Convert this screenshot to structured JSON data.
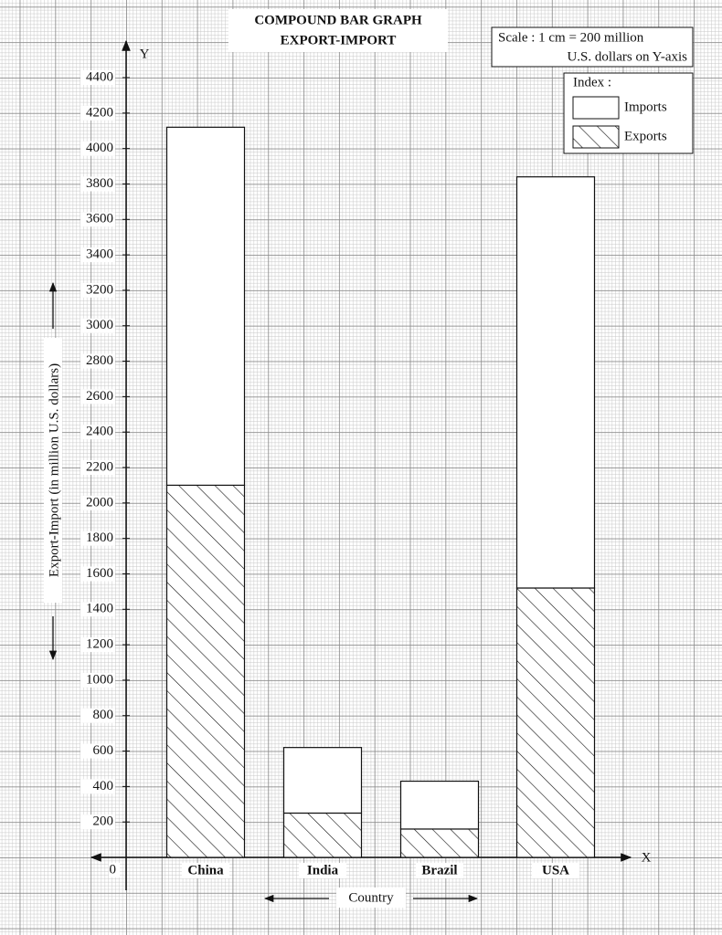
{
  "chart_data": {
    "type": "stacked_bar",
    "title": "COMPOUND BAR GRAPH",
    "subtitle": "EXPORT-IMPORT",
    "annotations": [
      "Scale : 1 cm = 200 million",
      "U.S. dollars on Y-axis"
    ],
    "legend_title": "Index :",
    "x_axis_letter": "X",
    "y_axis_letter": "Y",
    "y_label": "Export-Import (in million U.S. dollars)",
    "x_label": "Country",
    "categories": [
      "China",
      "India",
      "Brazil",
      "USA"
    ],
    "series": [
      {
        "name": "Exports",
        "color": "#ffffff",
        "hatch": true,
        "values": [
          2100,
          250,
          160,
          1520
        ]
      },
      {
        "name": "Imports",
        "color": "#ffffff",
        "hatch": false,
        "values": [
          2020,
          370,
          270,
          2320
        ]
      }
    ],
    "ylim": [
      0,
      4400
    ],
    "yticks": [
      0,
      200,
      400,
      600,
      800,
      1000,
      1200,
      1400,
      1600,
      1800,
      2000,
      2200,
      2400,
      2600,
      2800,
      3000,
      3200,
      3400,
      3600,
      3800,
      4000,
      4200,
      4400
    ],
    "legend": "top-right",
    "grid": true
  }
}
